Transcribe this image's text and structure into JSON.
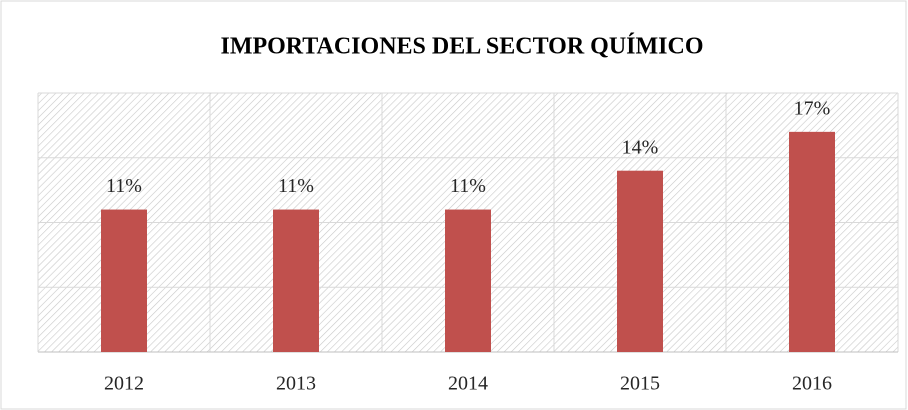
{
  "chart_data": {
    "type": "bar",
    "title": "IMPORTACIONES DEL SECTOR QUÍMICO",
    "categories": [
      "2012",
      "2013",
      "2014",
      "2015",
      "2016"
    ],
    "values": [
      11,
      11,
      11,
      14,
      17
    ],
    "value_labels": [
      "11%",
      "11%",
      "11%",
      "14%",
      "17%"
    ],
    "color": "#c0504d",
    "ylim": [
      0,
      20
    ],
    "yticks": [
      0,
      5,
      10,
      15,
      20
    ],
    "grid": true
  }
}
